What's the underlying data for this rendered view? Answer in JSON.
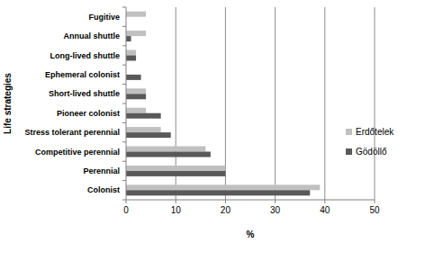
{
  "chart_data": {
    "type": "bar",
    "orientation": "horizontal",
    "x_label": "%",
    "y_label": "Life strategies",
    "categories": [
      "Colonist",
      "Perennial",
      "Competitive perennial",
      "Stress tolerant perennial",
      "Pioneer colonist",
      "Short-lived shuttle",
      "Ephemeral colonist",
      "Long-lived shuttle",
      "Annual shuttle",
      "Fugitive"
    ],
    "series": [
      {
        "name": "Erdőtelek",
        "color": "#c0c0c0",
        "values": [
          39,
          20,
          16,
          7,
          4,
          4,
          0,
          2,
          4,
          4
        ]
      },
      {
        "name": "Gödöllő",
        "color": "#595959",
        "values": [
          37,
          20,
          17,
          9,
          7,
          4,
          3,
          2,
          1,
          0
        ]
      }
    ],
    "xlim": [
      0,
      50
    ],
    "xticks": [
      0,
      10,
      20,
      30,
      40,
      50
    ],
    "grid": true,
    "legend": "right"
  }
}
